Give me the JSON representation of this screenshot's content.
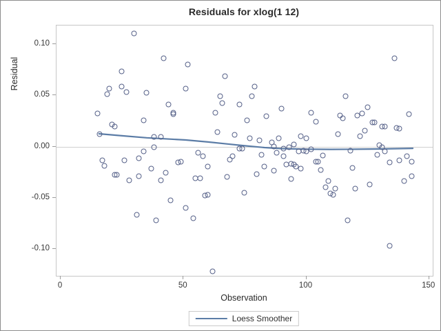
{
  "page": {
    "title": "Residuals for xlog(1 12)",
    "x_axis_label": "Observation",
    "y_axis_label": "Residual",
    "legend_label": "Loess Smoother"
  },
  "chart_data": {
    "type": "scatter",
    "title": "Residuals for xlog(1 12)",
    "xlabel": "Observation",
    "ylabel": "Residual",
    "xlim": [
      -1.7,
      151.5
    ],
    "ylim": [
      -0.126,
      0.118
    ],
    "x_ticks": [
      {
        "v": 0,
        "label": "0"
      },
      {
        "v": 50,
        "label": "50"
      },
      {
        "v": 100,
        "label": "100"
      },
      {
        "v": 150,
        "label": "150"
      }
    ],
    "y_ticks": [
      {
        "v": 0.1,
        "label": "0.10"
      },
      {
        "v": 0.05,
        "label": "0.05"
      },
      {
        "v": 0.0,
        "label": "0.00"
      },
      {
        "v": -0.05,
        "label": "-0.05"
      },
      {
        "v": -0.1,
        "label": "-0.10"
      }
    ],
    "grid": false,
    "legend_position": "bottom-center",
    "legend_entries": [
      {
        "label": "Loess Smoother",
        "type": "line"
      }
    ],
    "colors": {
      "marker": "#556088",
      "line": "#5b7ca6",
      "zero_line": "#cfcfcf"
    },
    "zero_reference_line": 0.0,
    "points": [
      [
        30,
        0.11
      ],
      [
        42,
        0.086
      ],
      [
        25,
        0.073
      ],
      [
        25,
        0.058
      ],
      [
        20,
        0.056
      ],
      [
        19,
        0.051
      ],
      [
        27,
        0.053
      ],
      [
        35,
        0.052
      ],
      [
        44,
        0.041
      ],
      [
        46,
        0.033
      ],
      [
        46,
        0.031
      ],
      [
        15,
        0.032
      ],
      [
        34,
        0.025
      ],
      [
        21,
        0.021
      ],
      [
        22,
        0.019
      ],
      [
        16,
        0.012
      ],
      [
        38,
        0.009
      ],
      [
        41,
        0.009
      ],
      [
        38,
        -0.001
      ],
      [
        52,
        0.08
      ],
      [
        67,
        0.068
      ],
      [
        51,
        0.056
      ],
      [
        79,
        0.058
      ],
      [
        78,
        0.049
      ],
      [
        65,
        0.049
      ],
      [
        66,
        0.042
      ],
      [
        73,
        0.041
      ],
      [
        63,
        0.033
      ],
      [
        90,
        0.037
      ],
      [
        102,
        0.033
      ],
      [
        76,
        0.025
      ],
      [
        84,
        0.029
      ],
      [
        104,
        0.024
      ],
      [
        64,
        0.014
      ],
      [
        71,
        0.011
      ],
      [
        77,
        0.008
      ],
      [
        81,
        0.006
      ],
      [
        89,
        0.008
      ],
      [
        86,
        0.004
      ],
      [
        87,
        0.0
      ],
      [
        95,
        0.002
      ],
      [
        98,
        0.01
      ],
      [
        100,
        0.008
      ],
      [
        136,
        0.086
      ],
      [
        116,
        0.049
      ],
      [
        125,
        0.038
      ],
      [
        114,
        0.03
      ],
      [
        115,
        0.027
      ],
      [
        121,
        0.03
      ],
      [
        123,
        0.032
      ],
      [
        127,
        0.023
      ],
      [
        128,
        0.023
      ],
      [
        131,
        0.019
      ],
      [
        132,
        0.019
      ],
      [
        137,
        0.018
      ],
      [
        138,
        0.017
      ],
      [
        142,
        0.031
      ],
      [
        113,
        0.012
      ],
      [
        122,
        0.01
      ],
      [
        124,
        0.015
      ],
      [
        130,
        0.001
      ],
      [
        34,
        -0.005
      ],
      [
        32,
        -0.012
      ],
      [
        17,
        -0.014
      ],
      [
        18,
        -0.019
      ],
      [
        26,
        -0.014
      ],
      [
        48,
        -0.016
      ],
      [
        49,
        -0.015
      ],
      [
        22,
        -0.028
      ],
      [
        23,
        -0.028
      ],
      [
        28,
        -0.033
      ],
      [
        32,
        -0.029
      ],
      [
        37,
        -0.022
      ],
      [
        41,
        -0.033
      ],
      [
        43,
        -0.026
      ],
      [
        45,
        -0.053
      ],
      [
        51,
        -0.06
      ],
      [
        31,
        -0.067
      ],
      [
        39,
        -0.072
      ],
      [
        56,
        -0.006
      ],
      [
        58,
        -0.01
      ],
      [
        60,
        -0.02
      ],
      [
        69,
        -0.013
      ],
      [
        70,
        -0.01
      ],
      [
        73,
        -0.002
      ],
      [
        74,
        -0.002
      ],
      [
        82,
        -0.008
      ],
      [
        83,
        -0.02
      ],
      [
        80,
        -0.027
      ],
      [
        87,
        -0.024
      ],
      [
        88,
        -0.006
      ],
      [
        91,
        -0.01
      ],
      [
        92,
        -0.018
      ],
      [
        94,
        -0.017
      ],
      [
        94,
        -0.032
      ],
      [
        95,
        -0.018
      ],
      [
        96,
        -0.02
      ],
      [
        98,
        -0.022
      ],
      [
        91,
        -0.002
      ],
      [
        93,
        -0.001
      ],
      [
        97,
        -0.005
      ],
      [
        99,
        -0.004
      ],
      [
        100,
        -0.005
      ],
      [
        104,
        -0.015
      ],
      [
        55,
        -0.031
      ],
      [
        57,
        -0.031
      ],
      [
        68,
        -0.03
      ],
      [
        75,
        -0.045
      ],
      [
        59,
        -0.048
      ],
      [
        60,
        -0.047
      ],
      [
        54,
        -0.07
      ],
      [
        62,
        -0.122
      ],
      [
        102,
        -0.003
      ],
      [
        107,
        -0.009
      ],
      [
        105,
        -0.015
      ],
      [
        106,
        -0.023
      ],
      [
        118,
        -0.004
      ],
      [
        119,
        -0.021
      ],
      [
        129,
        -0.008
      ],
      [
        132,
        -0.005
      ],
      [
        131,
        -0.001
      ],
      [
        134,
        -0.016
      ],
      [
        138,
        -0.014
      ],
      [
        141,
        -0.01
      ],
      [
        143,
        -0.015
      ],
      [
        143,
        -0.029
      ],
      [
        140,
        -0.034
      ],
      [
        109,
        -0.034
      ],
      [
        108,
        -0.04
      ],
      [
        112,
        -0.041
      ],
      [
        110,
        -0.046
      ],
      [
        111,
        -0.047
      ],
      [
        120,
        -0.041
      ],
      [
        126,
        -0.037
      ],
      [
        117,
        -0.072
      ],
      [
        134,
        -0.097
      ]
    ],
    "smoother": [
      [
        15.6,
        0.0125
      ],
      [
        25,
        0.0105
      ],
      [
        35,
        0.0086
      ],
      [
        45,
        0.0072
      ],
      [
        51,
        0.0064
      ],
      [
        60,
        0.0045
      ],
      [
        68,
        0.0025
      ],
      [
        75,
        0.0008
      ],
      [
        83,
        -0.001
      ],
      [
        90,
        -0.002
      ],
      [
        100,
        -0.0025
      ],
      [
        110,
        -0.0027
      ],
      [
        120,
        -0.0026
      ],
      [
        130,
        -0.0023
      ],
      [
        143.4,
        -0.0017
      ]
    ]
  }
}
